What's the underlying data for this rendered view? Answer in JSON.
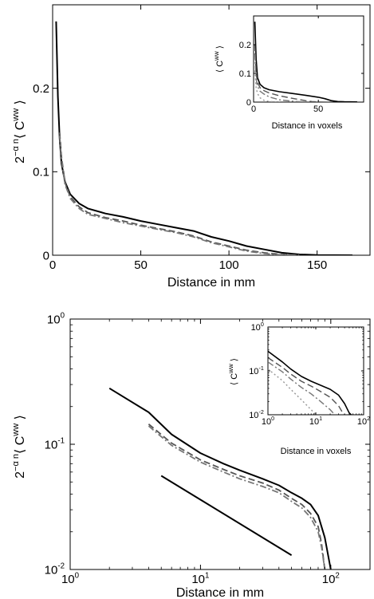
{
  "chart_data": [
    {
      "type": "line",
      "xscale": "linear",
      "yscale": "linear",
      "xlim": [
        0,
        180
      ],
      "ylim": [
        0,
        0.3
      ],
      "xticks": [
        0,
        50,
        100,
        150
      ],
      "yticks": [
        0,
        0.1,
        0.2
      ],
      "xticklabels": [
        "0",
        "50",
        "100",
        "150"
      ],
      "yticklabels": [
        "0",
        "0.1",
        "0.2"
      ],
      "xlabel": "Distance in mm",
      "ylabel_base": "2",
      "ylabel_exp": "−α n",
      "ylabel_main": "⟨ C",
      "ylabel_sup": "ww",
      "ylabel_close": " ⟩",
      "grid": false,
      "series": [
        {
          "style": "solid",
          "color": "#000000",
          "x": [
            2,
            3,
            4,
            5,
            7,
            10,
            15,
            20,
            30,
            40,
            50,
            60,
            70,
            80,
            90,
            100,
            110,
            120,
            130,
            140,
            150,
            160,
            170
          ],
          "y": [
            0.28,
            0.19,
            0.14,
            0.11,
            0.088,
            0.073,
            0.062,
            0.056,
            0.05,
            0.046,
            0.041,
            0.037,
            0.033,
            0.029,
            0.022,
            0.017,
            0.011,
            0.007,
            0.003,
            0.001,
            0.0003,
            0.0001,
            0.0
          ]
        },
        {
          "style": "dashed",
          "color": "#555555",
          "x": [
            4,
            5,
            7,
            10,
            15,
            20,
            30,
            40,
            50,
            60,
            70,
            80,
            90,
            100,
            110,
            120,
            130,
            140
          ],
          "y": [
            0.147,
            0.118,
            0.087,
            0.07,
            0.058,
            0.051,
            0.045,
            0.041,
            0.036,
            0.032,
            0.028,
            0.023,
            0.016,
            0.011,
            0.006,
            0.003,
            0.001,
            0.0
          ]
        },
        {
          "style": "dashdot",
          "color": "#777777",
          "x": [
            4,
            5,
            7,
            10,
            15,
            20,
            30,
            40,
            50,
            60,
            70,
            80,
            90,
            100,
            110,
            120,
            130,
            140
          ],
          "y": [
            0.143,
            0.115,
            0.085,
            0.068,
            0.056,
            0.049,
            0.044,
            0.039,
            0.035,
            0.031,
            0.027,
            0.022,
            0.015,
            0.01,
            0.005,
            0.002,
            0.0005,
            0.0
          ]
        }
      ]
    },
    {
      "type": "line",
      "inset_of": 0,
      "xscale": "linear",
      "yscale": "linear",
      "xlim": [
        0,
        85
      ],
      "ylim": [
        0,
        0.3
      ],
      "xticks": [
        0,
        50
      ],
      "yticks": [
        0,
        0.1,
        0.2
      ],
      "xticklabels": [
        "0",
        "50"
      ],
      "yticklabels": [
        "0",
        "0.1",
        "0.2"
      ],
      "xlabel": "Distance in voxels",
      "ylabel_main": "⟨ C",
      "ylabel_sup": "ww",
      "ylabel_close": " ⟩",
      "series": [
        {
          "style": "solid",
          "color": "#000000",
          "x": [
            1,
            2,
            3,
            5,
            8,
            12,
            20,
            30,
            40,
            50,
            55,
            60,
            65,
            70,
            80
          ],
          "y": [
            0.28,
            0.15,
            0.085,
            0.062,
            0.05,
            0.043,
            0.036,
            0.03,
            0.024,
            0.017,
            0.012,
            0.005,
            0.002,
            0.001,
            0.0005
          ]
        },
        {
          "style": "dashed",
          "color": "#555555",
          "x": [
            1,
            2,
            3,
            5,
            8,
            12,
            20,
            30,
            40,
            45,
            50,
            60
          ],
          "y": [
            0.2,
            0.1,
            0.07,
            0.05,
            0.04,
            0.032,
            0.022,
            0.013,
            0.005,
            0.002,
            0.0005,
            0.0
          ]
        },
        {
          "style": "dashdot",
          "color": "#777777",
          "x": [
            1,
            2,
            3,
            5,
            8,
            12,
            20,
            30,
            40
          ],
          "y": [
            0.17,
            0.08,
            0.055,
            0.038,
            0.028,
            0.018,
            0.008,
            0.003,
            0.0
          ]
        },
        {
          "style": "dotted",
          "color": "#999999",
          "x": [
            1,
            2,
            3,
            5,
            8,
            12,
            20
          ],
          "y": [
            0.11,
            0.05,
            0.03,
            0.015,
            0.006,
            0.002,
            0.0
          ]
        }
      ]
    },
    {
      "type": "line",
      "xscale": "log",
      "yscale": "log",
      "xlim": [
        1,
        200
      ],
      "ylim": [
        0.01,
        1
      ],
      "xticks": [
        1,
        10,
        100
      ],
      "yticks": [
        0.01,
        0.1,
        1
      ],
      "xtick_base": "10",
      "xtick_exps": [
        "0",
        "1",
        "2"
      ],
      "ytick_base": "10",
      "ytick_exps": [
        "-2",
        "-1",
        "0"
      ],
      "xlabel": "Distance in mm",
      "ylabel_base": "2",
      "ylabel_exp": "−α n",
      "ylabel_main": "⟨ C",
      "ylabel_sup": "ww",
      "ylabel_close": " ⟩",
      "grid": false,
      "series": [
        {
          "style": "solid",
          "color": "#000000",
          "x": [
            2,
            4,
            6,
            10,
            15,
            20,
            30,
            40,
            50,
            60,
            70,
            80,
            90,
            100
          ],
          "y": [
            0.28,
            0.18,
            0.12,
            0.085,
            0.07,
            0.062,
            0.053,
            0.047,
            0.041,
            0.037,
            0.033,
            0.027,
            0.018,
            0.01
          ]
        },
        {
          "style": "dashed",
          "color": "#555555",
          "x": [
            4,
            6,
            10,
            15,
            20,
            30,
            40,
            50,
            60,
            70,
            80,
            85,
            90
          ],
          "y": [
            0.145,
            0.102,
            0.075,
            0.063,
            0.056,
            0.049,
            0.043,
            0.037,
            0.033,
            0.028,
            0.022,
            0.016,
            0.01
          ]
        },
        {
          "style": "dashdot",
          "color": "#777777",
          "x": [
            4,
            6,
            10,
            15,
            20,
            30,
            40,
            50,
            60,
            70,
            80,
            85,
            90
          ],
          "y": [
            0.14,
            0.098,
            0.072,
            0.06,
            0.053,
            0.046,
            0.041,
            0.035,
            0.031,
            0.026,
            0.02,
            0.015,
            0.01
          ]
        },
        {
          "style": "solid",
          "color": "#000000",
          "role": "reference",
          "x": [
            5,
            50
          ],
          "y": [
            0.056,
            0.013
          ]
        }
      ]
    },
    {
      "type": "line",
      "inset_of": 2,
      "xscale": "log",
      "yscale": "log",
      "xlim": [
        1,
        100
      ],
      "ylim": [
        0.01,
        1
      ],
      "xticks": [
        1,
        10,
        100
      ],
      "yticks": [
        0.01,
        0.1,
        1
      ],
      "xtick_base": "10",
      "xtick_exps": [
        "0",
        "1",
        "2"
      ],
      "ytick_base": "10",
      "ytick_exps": [
        "-2",
        "-1",
        "0"
      ],
      "xlabel": "Distance in voxels",
      "ylabel_main": "⟨ C",
      "ylabel_sup": "ww",
      "ylabel_close": " ⟩",
      "series": [
        {
          "style": "solid",
          "color": "#000000",
          "x": [
            1,
            2,
            3,
            5,
            8,
            12,
            20,
            30,
            40,
            50,
            55
          ],
          "y": [
            0.28,
            0.16,
            0.11,
            0.075,
            0.058,
            0.048,
            0.038,
            0.028,
            0.018,
            0.011,
            0.01
          ]
        },
        {
          "style": "dashed",
          "color": "#555555",
          "x": [
            1,
            2,
            3,
            5,
            8,
            12,
            20,
            30,
            35,
            40
          ],
          "y": [
            0.2,
            0.12,
            0.085,
            0.058,
            0.045,
            0.035,
            0.025,
            0.016,
            0.012,
            0.01
          ]
        },
        {
          "style": "dashdot",
          "color": "#777777",
          "x": [
            1,
            2,
            3,
            5,
            8,
            12,
            20,
            25
          ],
          "y": [
            0.16,
            0.095,
            0.065,
            0.042,
            0.03,
            0.021,
            0.013,
            0.01
          ]
        },
        {
          "style": "dotted",
          "color": "#999999",
          "x": [
            1,
            2,
            3,
            5,
            8,
            10
          ],
          "y": [
            0.11,
            0.06,
            0.038,
            0.022,
            0.013,
            0.01
          ]
        }
      ]
    }
  ]
}
